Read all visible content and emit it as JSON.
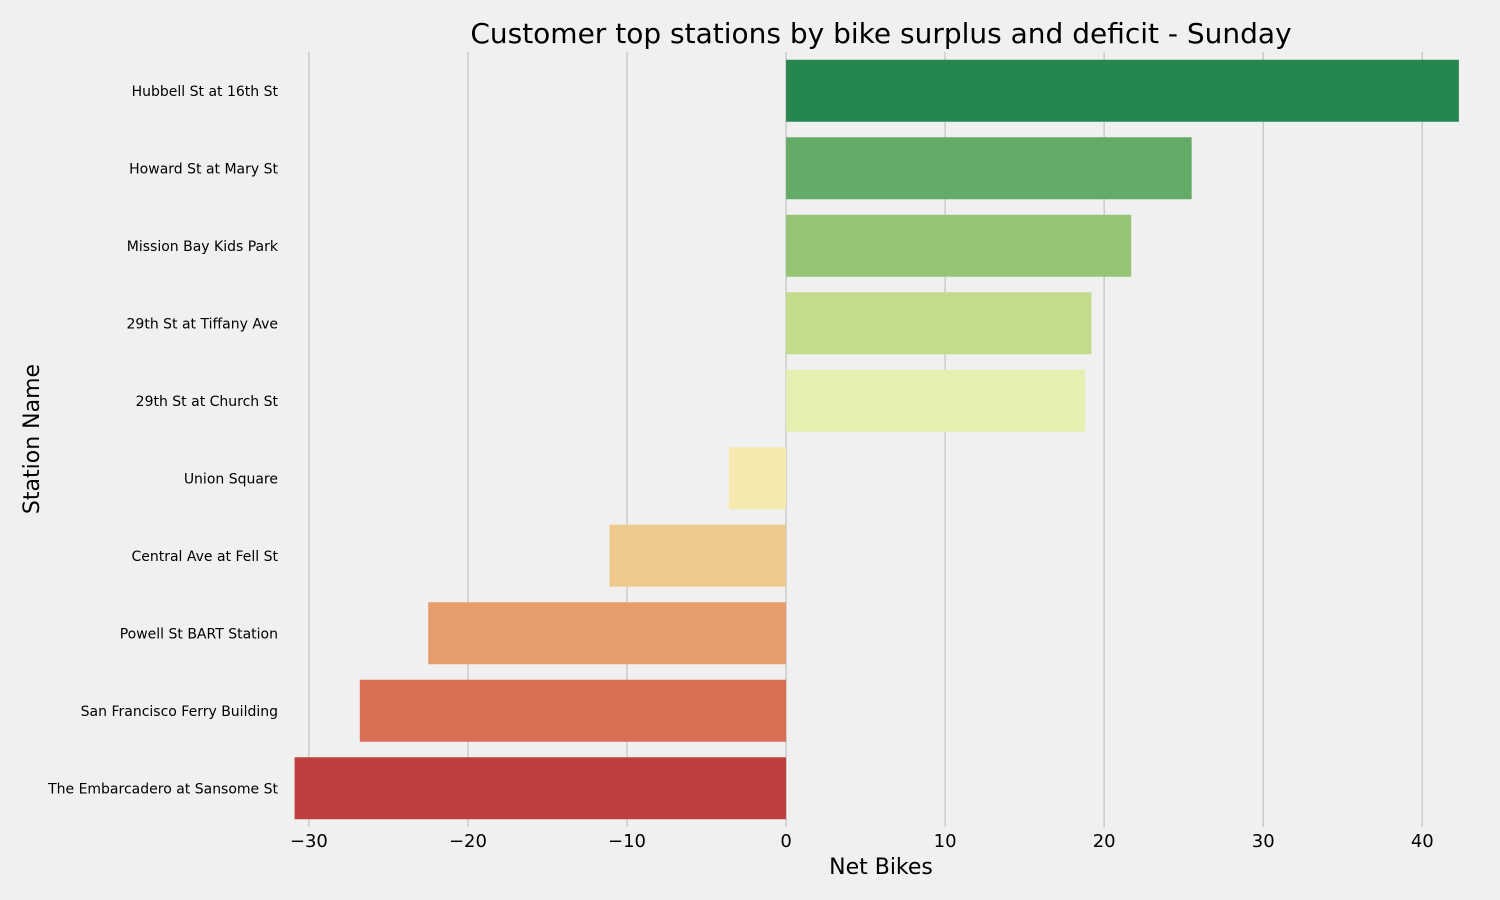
{
  "chart_data": {
    "type": "bar",
    "orientation": "horizontal",
    "title": "Customer top stations by bike surplus and deficit - Sunday",
    "xlabel": "Net Bikes",
    "ylabel": "Station Name",
    "xlim": [
      -31,
      43
    ],
    "x_ticks": [
      -30,
      -20,
      -10,
      0,
      10,
      20,
      30,
      40
    ],
    "x_tick_labels": [
      "−30",
      "−20",
      "−10",
      "0",
      "10",
      "20",
      "30",
      "40"
    ],
    "grid": "vertical",
    "categories": [
      "Hubbell St at 16th St",
      "Howard St at Mary St",
      "Mission Bay Kids Park",
      "29th St at Tiffany Ave",
      "29th St at Church St",
      "Union Square",
      "Central Ave at Fell St",
      "Powell St BART Station",
      "San Francisco Ferry Building",
      "The Embarcadero at Sansome St"
    ],
    "values": [
      42.3,
      25.5,
      21.7,
      19.2,
      18.8,
      -3.6,
      -11.1,
      -22.5,
      -26.8,
      -30.9
    ],
    "colors": [
      "#26864f",
      "#63ab67",
      "#95c574",
      "#c3dc8b",
      "#e5efb0",
      "#f5e9b0",
      "#eec98d",
      "#e79d6b",
      "#d86f55",
      "#be403e"
    ]
  },
  "colors": {
    "background": "#f0f0f0",
    "grid": "#cbcbcb",
    "text": "#000000"
  }
}
